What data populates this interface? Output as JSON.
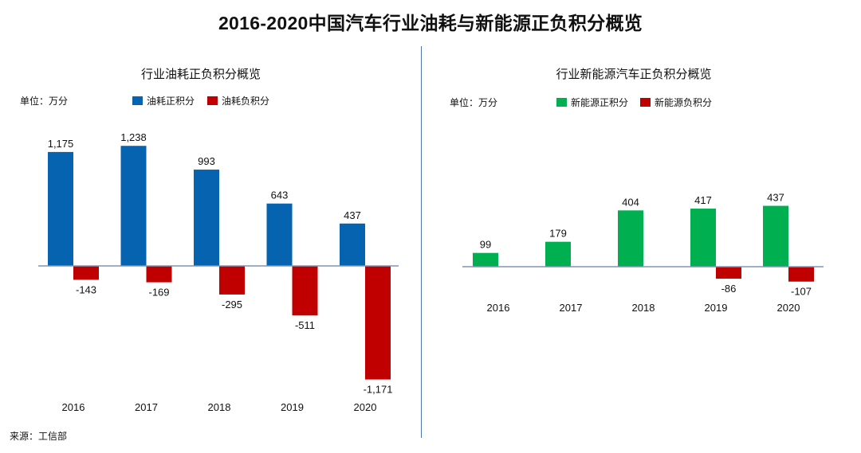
{
  "page": {
    "title": "2016-2020中国汽车行业油耗与新能源正负积分概览",
    "source": "来源：工信部"
  },
  "chart_data": [
    {
      "type": "bar",
      "title": "行业油耗正负积分概览",
      "unit": "单位：万分",
      "categories": [
        "2016",
        "2017",
        "2018",
        "2019",
        "2020"
      ],
      "series": [
        {
          "name": "油耗正积分",
          "color": "#0563b0",
          "values": [
            1175,
            1238,
            993,
            643,
            437
          ],
          "labels": [
            "1,175",
            "1,238",
            "993",
            "643",
            "437"
          ]
        },
        {
          "name": "油耗负积分",
          "color": "#c00000",
          "values": [
            -143,
            -169,
            -295,
            -511,
            -1171
          ],
          "labels": [
            "-143",
            "-169",
            "-295",
            "-511",
            "-1,171"
          ]
        }
      ],
      "ylim": [
        -1171,
        1238
      ],
      "grid": false,
      "legend": "top"
    },
    {
      "type": "bar",
      "title": "行业新能源汽车正负积分概览",
      "unit": "单位：万分",
      "categories": [
        "2016",
        "2017",
        "2018",
        "2019",
        "2020"
      ],
      "series": [
        {
          "name": "新能源正积分",
          "color": "#00b050",
          "values": [
            99,
            179,
            404,
            417,
            437
          ],
          "labels": [
            "99",
            "179",
            "404",
            "417",
            "437"
          ]
        },
        {
          "name": "新能源负积分",
          "color": "#c00000",
          "values": [
            0,
            0,
            0,
            -86,
            -107
          ],
          "labels": [
            "",
            "",
            "",
            "-86",
            "-107"
          ]
        }
      ],
      "ylim": [
        -107,
        437
      ],
      "grid": false,
      "legend": "top"
    }
  ]
}
